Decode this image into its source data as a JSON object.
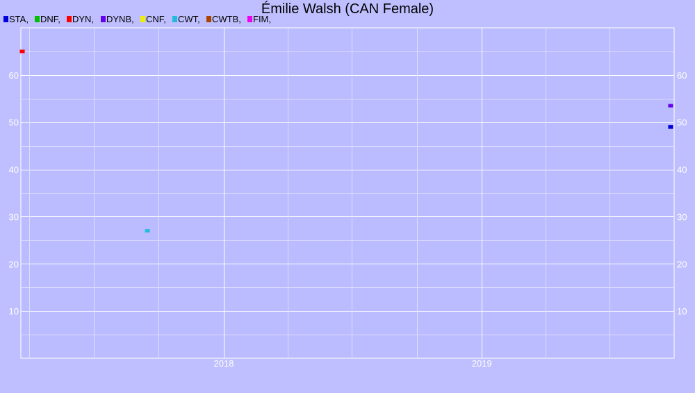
{
  "chart_data": {
    "type": "scatter",
    "title": "Émilie Walsh (CAN Female)",
    "xlabel": "",
    "ylabel": "",
    "x_ticks": [
      "2018",
      "2019"
    ],
    "y_ticks": [
      10,
      20,
      30,
      40,
      50,
      60
    ],
    "ylim": [
      0,
      70
    ],
    "xlim": [
      "2017-03-20",
      "2019-09-30"
    ],
    "grid": true,
    "legend_position": "top-left",
    "series": [
      {
        "name": "STA",
        "color": "#0000dd",
        "points": [
          {
            "x": "2019-09-25",
            "y": 49
          }
        ]
      },
      {
        "name": "DNF",
        "color": "#00c000",
        "points": []
      },
      {
        "name": "DYN",
        "color": "#ff0000",
        "points": [
          {
            "x": "2017-03-22",
            "y": 65
          }
        ]
      },
      {
        "name": "DYNB",
        "color": "#6600ee",
        "points": [
          {
            "x": "2019-09-25",
            "y": 53.5
          }
        ]
      },
      {
        "name": "CNF",
        "color": "#eeee00",
        "points": []
      },
      {
        "name": "CWT",
        "color": "#22bbdd",
        "points": [
          {
            "x": "2017-09-15",
            "y": 27
          }
        ]
      },
      {
        "name": "CWTB",
        "color": "#aa4400",
        "points": []
      },
      {
        "name": "FIM",
        "color": "#ee00ee",
        "points": []
      }
    ]
  }
}
